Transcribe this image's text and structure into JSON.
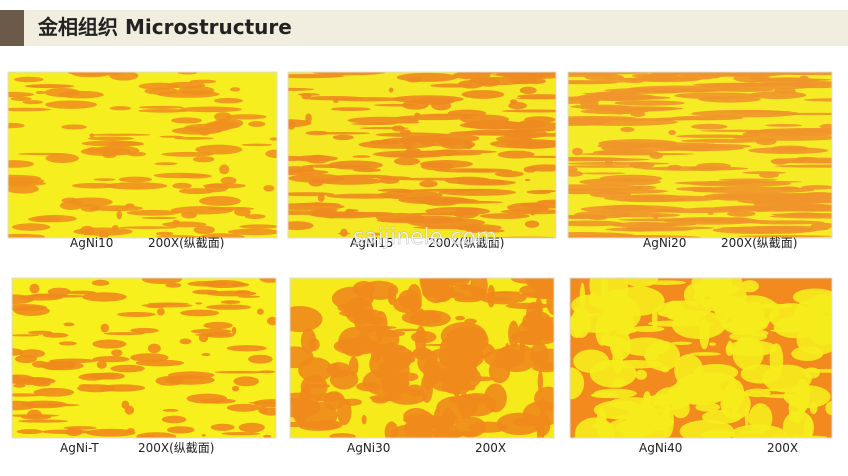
{
  "header": {
    "title": "金相组织 Microstructure"
  },
  "panels": [
    {
      "alloy": "AgNi10",
      "magnification": "200X(纵截面)"
    },
    {
      "alloy": "AgNi15",
      "magnification": "200X(纵截面)"
    },
    {
      "alloy": "AgNi20",
      "magnification": "200X(纵截面)"
    },
    {
      "alloy": "AgNi-T",
      "magnification": "200X(纵截面)"
    },
    {
      "alloy": "AgNi30",
      "magnification": "200X"
    },
    {
      "alloy": "AgNi40",
      "magnification": "200X"
    }
  ],
  "watermark": "saijinele.com"
}
